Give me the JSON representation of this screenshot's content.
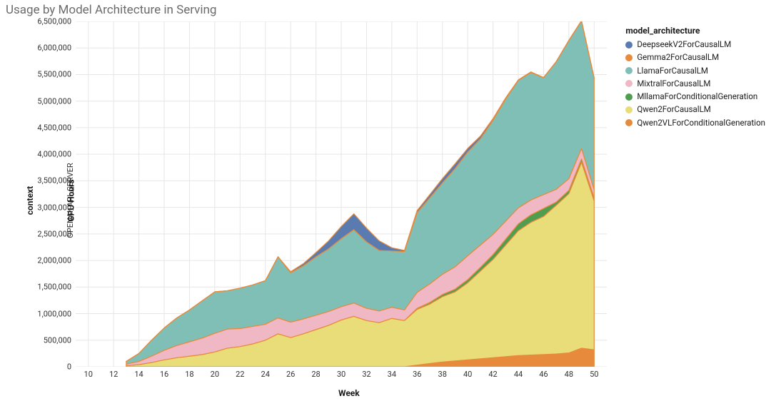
{
  "title": "Usage by Model Architecture in Serving",
  "context_label": "context",
  "server_label": "OPENAI_API_SERVER",
  "chart": {
    "type": "stacked-area",
    "xlabel": "Week",
    "ylabel": "GPU Hours",
    "xlim": [
      9,
      51
    ],
    "ylim": [
      0,
      6500000
    ],
    "xtick_step": 2,
    "xtick_start": 10,
    "xtick_end": 50,
    "yticks": [
      0,
      500000,
      1000000,
      1500000,
      2000000,
      2500000,
      3000000,
      3500000,
      4000000,
      4500000,
      5000000,
      5500000,
      6000000,
      6500000
    ],
    "ytick_labels": [
      "0",
      "500,000",
      "1,000,000",
      "1,500,000",
      "2,000,000",
      "2,500,000",
      "3,000,000",
      "3,500,000",
      "4,000,000",
      "4,500,000",
      "5,000,000",
      "5,500,000",
      "6,000,000",
      "6,500,000"
    ],
    "background_color": "#ffffff",
    "grid_color": "#e6e6e6",
    "stroke_color": "#e88a3c",
    "title_fontsize": 17,
    "label_fontsize": 12,
    "tick_fontsize": 11,
    "weeks": [
      13,
      14,
      15,
      16,
      17,
      18,
      19,
      20,
      21,
      22,
      23,
      24,
      25,
      26,
      27,
      28,
      29,
      30,
      31,
      32,
      33,
      34,
      35,
      36,
      37,
      38,
      39,
      40,
      41,
      42,
      43,
      44,
      45,
      46,
      47,
      48,
      49,
      50
    ],
    "series": [
      {
        "name": "Qwen2VLForConditionalGeneration",
        "color": "#e88a3c",
        "values": [
          0,
          0,
          0,
          0,
          0,
          0,
          0,
          0,
          0,
          0,
          0,
          0,
          0,
          0,
          0,
          0,
          0,
          0,
          0,
          0,
          0,
          0,
          0,
          30000,
          60000,
          90000,
          110000,
          130000,
          150000,
          170000,
          190000,
          210000,
          220000,
          230000,
          240000,
          260000,
          350000,
          320000
        ]
      },
      {
        "name": "Qwen2ForCausalLM",
        "color": "#e9dd7a",
        "values": [
          20000,
          40000,
          80000,
          130000,
          170000,
          200000,
          230000,
          280000,
          350000,
          380000,
          430000,
          500000,
          620000,
          550000,
          620000,
          700000,
          780000,
          880000,
          950000,
          870000,
          830000,
          910000,
          870000,
          1050000,
          1120000,
          1230000,
          1300000,
          1450000,
          1650000,
          1850000,
          2100000,
          2350000,
          2500000,
          2600000,
          2800000,
          3000000,
          3500000,
          2800000
        ]
      },
      {
        "name": "MllamaForConditionalGeneration",
        "color": "#4f9e4f",
        "values": [
          0,
          0,
          0,
          0,
          0,
          0,
          0,
          0,
          0,
          0,
          0,
          0,
          0,
          0,
          0,
          0,
          0,
          0,
          0,
          0,
          0,
          0,
          0,
          20000,
          30000,
          40000,
          50000,
          60000,
          70000,
          90000,
          110000,
          130000,
          140000,
          150000,
          60000,
          60000,
          60000,
          60000
        ]
      },
      {
        "name": "MixtralForCausalLM",
        "color": "#f0b8c4",
        "values": [
          30000,
          60000,
          120000,
          180000,
          230000,
          270000,
          310000,
          350000,
          360000,
          340000,
          330000,
          300000,
          300000,
          290000,
          280000,
          270000,
          260000,
          250000,
          250000,
          230000,
          220000,
          210000,
          200000,
          300000,
          350000,
          380000,
          420000,
          450000,
          420000,
          380000,
          340000,
          300000,
          280000,
          260000,
          240000,
          220000,
          200000,
          150000
        ]
      },
      {
        "name": "LlamaForCausalLM",
        "color": "#7fbfb5",
        "values": [
          50000,
          150000,
          300000,
          420000,
          520000,
          600000,
          700000,
          780000,
          720000,
          760000,
          780000,
          820000,
          1150000,
          930000,
          1000000,
          1100000,
          1180000,
          1280000,
          1380000,
          1250000,
          1140000,
          1060000,
          1100000,
          1500000,
          1620000,
          1720000,
          1850000,
          1950000,
          2000000,
          2150000,
          2300000,
          2400000,
          2400000,
          2200000,
          2400000,
          2600000,
          2400000,
          2100000
        ]
      },
      {
        "name": "Gemma2ForCausalLM",
        "color": "#e88a3c",
        "values": [
          0,
          0,
          0,
          0,
          0,
          0,
          0,
          0,
          0,
          0,
          0,
          0,
          0,
          0,
          0,
          0,
          0,
          0,
          0,
          0,
          0,
          0,
          0,
          0,
          0,
          0,
          0,
          0,
          0,
          0,
          0,
          0,
          0,
          0,
          0,
          0,
          0,
          0
        ]
      },
      {
        "name": "DeepseekV2ForCausalLM",
        "color": "#5a7bb0",
        "values": [
          0,
          0,
          0,
          0,
          0,
          0,
          0,
          0,
          0,
          0,
          0,
          0,
          0,
          20000,
          40000,
          80000,
          150000,
          230000,
          300000,
          260000,
          180000,
          60000,
          20000,
          40000,
          60000,
          80000,
          90000,
          70000,
          50000,
          30000,
          20000,
          10000,
          10000,
          5000,
          5000,
          5000,
          5000,
          5000
        ]
      }
    ]
  },
  "legend": {
    "title": "model_architecture",
    "items": [
      {
        "name": "DeepseekV2ForCausalLM",
        "color": "#5a7bb0"
      },
      {
        "name": "Gemma2ForCausalLM",
        "color": "#e88a3c"
      },
      {
        "name": "LlamaForCausalLM",
        "color": "#7fbfb5"
      },
      {
        "name": "MixtralForCausalLM",
        "color": "#f0b8c4"
      },
      {
        "name": "MllamaForConditionalGeneration",
        "color": "#4f9e4f"
      },
      {
        "name": "Qwen2ForCausalLM",
        "color": "#e9dd7a"
      },
      {
        "name": "Qwen2VLForConditionalGeneration",
        "color": "#e88a3c"
      }
    ]
  }
}
